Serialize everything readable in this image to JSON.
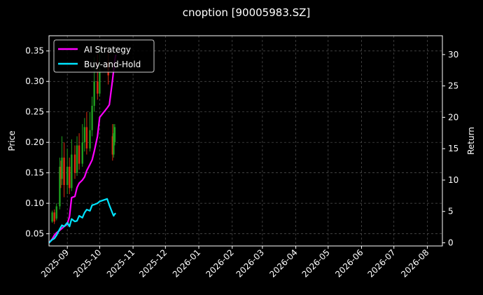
{
  "chart_data": {
    "type": "line",
    "title": "cnoption [90005983.SZ]",
    "ylabel_left": "Price",
    "ylabel_right": "Return",
    "x_axis": {
      "range": [
        "2025-08-15",
        "2026-08-15"
      ],
      "tick_labels": [
        "2025-09",
        "2025-10",
        "2025-11",
        "2025-12",
        "2026-01",
        "2026-02",
        "2026-03",
        "2026-04",
        "2026-05",
        "2026-06",
        "2026-07",
        "2026-08"
      ],
      "tick_dates": [
        "2025-09-01",
        "2025-10-01",
        "2025-11-01",
        "2025-12-01",
        "2026-01-01",
        "2026-02-01",
        "2026-03-01",
        "2026-04-01",
        "2026-05-01",
        "2026-06-01",
        "2026-07-01",
        "2026-08-01"
      ]
    },
    "y_left": {
      "range": [
        0.03,
        0.375
      ],
      "ticks": [
        0.05,
        0.1,
        0.15,
        0.2,
        0.25,
        0.3,
        0.35
      ],
      "tick_labels": [
        "0.05",
        "0.10",
        "0.15",
        "0.20",
        "0.25",
        "0.30",
        "0.35"
      ]
    },
    "y_right": {
      "range": [
        -0.5,
        33
      ],
      "ticks": [
        0,
        5,
        10,
        15,
        20,
        25,
        30
      ],
      "tick_labels": [
        "0",
        "5",
        "10",
        "15",
        "20",
        "25",
        "30"
      ]
    },
    "grid": true,
    "legend_position": "top-left",
    "series": [
      {
        "name": "AI Strategy",
        "axis": "right",
        "color": "#ff00ff",
        "points": [
          [
            "2025-08-15",
            0.0
          ],
          [
            "2025-08-18",
            0.6
          ],
          [
            "2025-08-20",
            1.2
          ],
          [
            "2025-08-22",
            1.6
          ],
          [
            "2025-08-25",
            2.0
          ],
          [
            "2025-08-27",
            2.3
          ],
          [
            "2025-08-29",
            2.6
          ],
          [
            "2025-09-01",
            3.0
          ],
          [
            "2025-09-03",
            4.2
          ],
          [
            "2025-09-05",
            7.2
          ],
          [
            "2025-09-08",
            7.4
          ],
          [
            "2025-09-10",
            8.8
          ],
          [
            "2025-09-12",
            9.5
          ],
          [
            "2025-09-15",
            10.0
          ],
          [
            "2025-09-17",
            10.5
          ],
          [
            "2025-09-19",
            11.5
          ],
          [
            "2025-09-22",
            12.5
          ],
          [
            "2025-09-24",
            13.2
          ],
          [
            "2025-09-26",
            14.6
          ],
          [
            "2025-09-29",
            17.0
          ],
          [
            "2025-10-01",
            20.0
          ],
          [
            "2025-10-08",
            21.5
          ],
          [
            "2025-10-10",
            22.0
          ],
          [
            "2025-10-13",
            26.0
          ],
          [
            "2025-10-15",
            29.0
          ],
          [
            "2025-10-16",
            30.0
          ]
        ]
      },
      {
        "name": "Buy-and-Hold",
        "axis": "right",
        "color": "#00e5ff",
        "points": [
          [
            "2025-08-15",
            0.0
          ],
          [
            "2025-08-18",
            0.5
          ],
          [
            "2025-08-20",
            0.7
          ],
          [
            "2025-08-22",
            1.2
          ],
          [
            "2025-08-25",
            2.2
          ],
          [
            "2025-08-27",
            2.8
          ],
          [
            "2025-08-29",
            2.6
          ],
          [
            "2025-09-01",
            3.2
          ],
          [
            "2025-09-03",
            2.6
          ],
          [
            "2025-09-05",
            3.8
          ],
          [
            "2025-09-08",
            3.4
          ],
          [
            "2025-09-10",
            3.5
          ],
          [
            "2025-09-12",
            4.3
          ],
          [
            "2025-09-15",
            4.0
          ],
          [
            "2025-09-17",
            4.8
          ],
          [
            "2025-09-19",
            5.3
          ],
          [
            "2025-09-22",
            5.1
          ],
          [
            "2025-09-24",
            6.0
          ],
          [
            "2025-09-26",
            6.1
          ],
          [
            "2025-09-29",
            6.3
          ],
          [
            "2025-10-01",
            6.6
          ],
          [
            "2025-10-08",
            7.0
          ],
          [
            "2025-10-10",
            6.0
          ],
          [
            "2025-10-13",
            4.7
          ],
          [
            "2025-10-14",
            4.3
          ],
          [
            "2025-10-15",
            4.6
          ],
          [
            "2025-10-16",
            4.7
          ]
        ]
      }
    ],
    "candles": [
      {
        "date": "2025-08-18",
        "open": 0.07,
        "close": 0.085,
        "high": 0.088,
        "low": 0.068
      },
      {
        "date": "2025-08-20",
        "open": 0.085,
        "close": 0.07,
        "high": 0.09,
        "low": 0.066
      },
      {
        "date": "2025-08-22",
        "open": 0.075,
        "close": 0.095,
        "high": 0.1,
        "low": 0.072
      },
      {
        "date": "2025-08-25",
        "open": 0.095,
        "close": 0.16,
        "high": 0.175,
        "low": 0.09
      },
      {
        "date": "2025-08-26",
        "open": 0.16,
        "close": 0.14,
        "high": 0.17,
        "low": 0.125
      },
      {
        "date": "2025-08-27",
        "open": 0.14,
        "close": 0.175,
        "high": 0.21,
        "low": 0.13
      },
      {
        "date": "2025-08-29",
        "open": 0.175,
        "close": 0.13,
        "high": 0.2,
        "low": 0.11
      },
      {
        "date": "2025-09-01",
        "open": 0.13,
        "close": 0.16,
        "high": 0.19,
        "low": 0.115
      },
      {
        "date": "2025-09-03",
        "open": 0.16,
        "close": 0.125,
        "high": 0.175,
        "low": 0.115
      },
      {
        "date": "2025-09-05",
        "open": 0.125,
        "close": 0.18,
        "high": 0.205,
        "low": 0.12
      },
      {
        "date": "2025-09-08",
        "open": 0.18,
        "close": 0.15,
        "high": 0.195,
        "low": 0.14
      },
      {
        "date": "2025-09-10",
        "open": 0.15,
        "close": 0.195,
        "high": 0.21,
        "low": 0.145
      },
      {
        "date": "2025-09-12",
        "open": 0.195,
        "close": 0.165,
        "high": 0.215,
        "low": 0.155
      },
      {
        "date": "2025-09-15",
        "open": 0.165,
        "close": 0.2,
        "high": 0.23,
        "low": 0.16
      },
      {
        "date": "2025-09-17",
        "open": 0.2,
        "close": 0.225,
        "high": 0.24,
        "low": 0.185
      },
      {
        "date": "2025-09-19",
        "open": 0.225,
        "close": 0.19,
        "high": 0.25,
        "low": 0.18
      },
      {
        "date": "2025-09-22",
        "open": 0.19,
        "close": 0.22,
        "high": 0.25,
        "low": 0.185
      },
      {
        "date": "2025-09-24",
        "open": 0.22,
        "close": 0.26,
        "high": 0.275,
        "low": 0.21
      },
      {
        "date": "2025-09-26",
        "open": 0.26,
        "close": 0.3,
        "high": 0.34,
        "low": 0.25
      },
      {
        "date": "2025-09-29",
        "open": 0.3,
        "close": 0.28,
        "high": 0.345,
        "low": 0.27
      },
      {
        "date": "2025-10-01",
        "open": 0.28,
        "close": 0.32,
        "high": 0.355,
        "low": 0.275
      },
      {
        "date": "2025-10-09",
        "open": 0.33,
        "close": 0.31,
        "high": 0.35,
        "low": 0.295
      },
      {
        "date": "2025-10-13",
        "open": 0.21,
        "close": 0.18,
        "high": 0.23,
        "low": 0.17
      },
      {
        "date": "2025-10-14",
        "open": 0.18,
        "close": 0.215,
        "high": 0.23,
        "low": 0.175
      },
      {
        "date": "2025-10-15",
        "open": 0.2,
        "close": 0.225,
        "high": 0.23,
        "low": 0.195
      }
    ]
  }
}
